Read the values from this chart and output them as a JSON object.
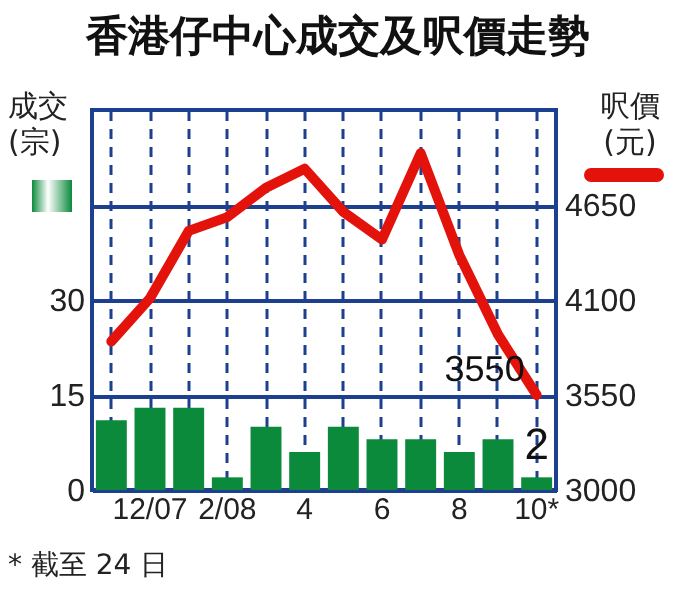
{
  "chart_data": {
    "type": "bar",
    "title": "香港仔中心成交及呎價走勢",
    "ylabel": "成交\n(宗)",
    "y2label": "呎價\n(元)",
    "categories": [
      null,
      "12/07",
      null,
      "2/08",
      null,
      "4",
      null,
      "6",
      null,
      "8",
      null,
      "10*"
    ],
    "series": [
      {
        "color": "#0b8a3c",
        "values": [
          11,
          13,
          13,
          2,
          10,
          6,
          10,
          8,
          8,
          6,
          8,
          2
        ],
        "value_labels": [
          null,
          null,
          null,
          null,
          null,
          null,
          null,
          null,
          null,
          null,
          null,
          "2"
        ]
      },
      {
        "type": "line",
        "axis": "y2",
        "color": "#e3120b",
        "values": [
          3860,
          4110,
          4500,
          4580,
          4750,
          4860,
          4610,
          4450,
          4950,
          4360,
          3900,
          3550
        ],
        "value_labels": [
          null,
          null,
          null,
          null,
          null,
          null,
          null,
          null,
          null,
          null,
          null,
          "3550"
        ]
      }
    ],
    "ylim": [
      0,
      60
    ],
    "yticks": [
      0,
      15,
      30,
      {
        "value": 45,
        "label": null
      }
    ],
    "y2lim": [
      3000,
      5200
    ],
    "y2ticks": [
      3000,
      3550,
      4100,
      4650
    ],
    "grid": true,
    "line_style": "solid",
    "annotations": [
      "* 截至 24 日"
    ]
  }
}
